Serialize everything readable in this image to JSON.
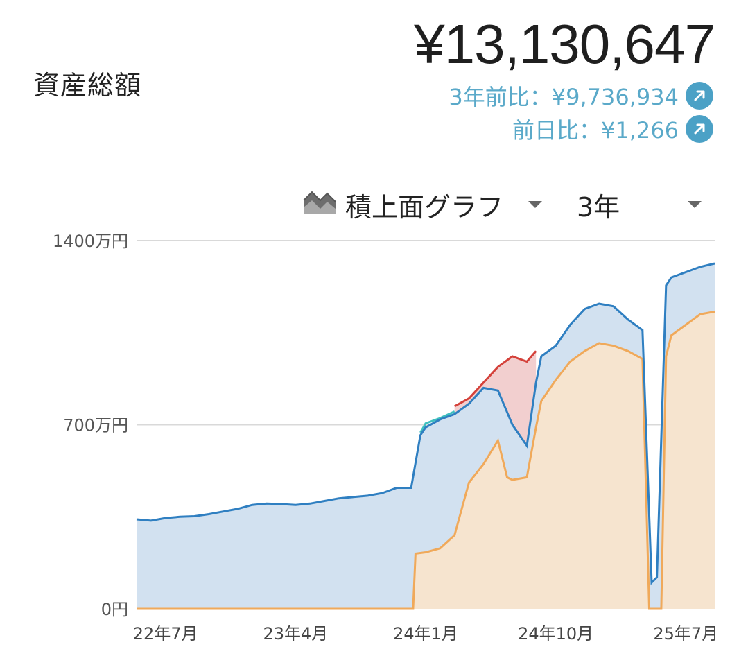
{
  "header": {
    "label": "資産総額",
    "total": "¥13,130,647",
    "comparisons": [
      {
        "text": "3年前比：¥9,736,934",
        "icon": "arrow-up-right-icon"
      },
      {
        "text": "前日比：¥1,266",
        "icon": "arrow-up-right-icon"
      }
    ]
  },
  "controls": {
    "graph_type": "積上面グラフ",
    "graph_type_icon": "stacked-area-icon",
    "period": "3年"
  },
  "colors": {
    "accent": "#4ba1c6",
    "blue_line": "#2f7fc1",
    "blue_fill": "#d2e1f0",
    "orange_line": "#f0a95a",
    "orange_fill": "#f6e4cf",
    "red_line": "#d4413a",
    "red_fill": "#f2cfcf",
    "teal_line": "#3fbfbf"
  },
  "chart_data": {
    "type": "area",
    "stacked": true,
    "ylim": [
      0,
      1400
    ],
    "y_unit": "万円",
    "y_ticks": [
      "1400万円",
      "700万円",
      "0円"
    ],
    "y_tick_values": [
      1400,
      700,
      0
    ],
    "x_ticks": [
      "22年7月",
      "23年4月",
      "24年1月",
      "24年10月",
      "25年7月"
    ],
    "x_tick_positions": [
      "2022-07",
      "2023-04",
      "2024-01",
      "2024-10",
      "2025-07"
    ],
    "x_range": [
      "2022-05",
      "2025-09"
    ],
    "grid": true,
    "series": [
      {
        "role": "total",
        "color": "blue",
        "points": [
          [
            "2022-05",
            340
          ],
          [
            "2022-06",
            335
          ],
          [
            "2022-07",
            345
          ],
          [
            "2022-08",
            350
          ],
          [
            "2022-09",
            352
          ],
          [
            "2022-10",
            360
          ],
          [
            "2022-11",
            370
          ],
          [
            "2022-12",
            380
          ],
          [
            "2023-01",
            395
          ],
          [
            "2023-02",
            400
          ],
          [
            "2023-03",
            398
          ],
          [
            "2023-04",
            395
          ],
          [
            "2023-05",
            400
          ],
          [
            "2023-06",
            410
          ],
          [
            "2023-07",
            420
          ],
          [
            "2023-08",
            425
          ],
          [
            "2023-09",
            430
          ],
          [
            "2023-10",
            440
          ],
          [
            "2023-11",
            460
          ],
          [
            "2023-12",
            460
          ],
          [
            "2023-12-20",
            660
          ],
          [
            "2024-01",
            690
          ],
          [
            "2024-02",
            720
          ],
          [
            "2024-03",
            740
          ],
          [
            "2024-04",
            780
          ],
          [
            "2024-05",
            840
          ],
          [
            "2024-06",
            830
          ],
          [
            "2024-07",
            700
          ],
          [
            "2024-08",
            620
          ],
          [
            "2024-08-20",
            860
          ],
          [
            "2024-09",
            960
          ],
          [
            "2024-10",
            1000
          ],
          [
            "2024-11",
            1080
          ],
          [
            "2024-12",
            1140
          ],
          [
            "2025-01",
            1160
          ],
          [
            "2025-02",
            1150
          ],
          [
            "2025-03",
            1100
          ],
          [
            "2025-04",
            1060
          ],
          [
            "2025-04-20",
            100
          ],
          [
            "2025-05",
            120
          ],
          [
            "2025-05-20",
            1230
          ],
          [
            "2025-06",
            1260
          ],
          [
            "2025-07",
            1280
          ],
          [
            "2025-08",
            1300
          ],
          [
            "2025-09",
            1313
          ]
        ]
      },
      {
        "role": "base",
        "color": "orange",
        "points": [
          [
            "2022-05",
            0
          ],
          [
            "2023-12",
            0
          ],
          [
            "2023-12-05",
            0
          ],
          [
            "2023-12-10",
            210
          ],
          [
            "2024-01",
            215
          ],
          [
            "2024-02",
            230
          ],
          [
            "2024-03",
            280
          ],
          [
            "2024-04",
            480
          ],
          [
            "2024-05",
            550
          ],
          [
            "2024-06",
            640
          ],
          [
            "2024-06-20",
            500
          ],
          [
            "2024-07",
            490
          ],
          [
            "2024-08",
            500
          ],
          [
            "2024-08-20",
            690
          ],
          [
            "2024-09",
            790
          ],
          [
            "2024-10",
            870
          ],
          [
            "2024-11",
            940
          ],
          [
            "2024-12",
            980
          ],
          [
            "2025-01",
            1010
          ],
          [
            "2025-02",
            1000
          ],
          [
            "2025-03",
            980
          ],
          [
            "2025-04",
            950
          ],
          [
            "2025-04-15",
            0
          ],
          [
            "2025-05-10",
            0
          ],
          [
            "2025-05-20",
            960
          ],
          [
            "2025-06",
            1040
          ],
          [
            "2025-07",
            1080
          ],
          [
            "2025-08",
            1120
          ],
          [
            "2025-09",
            1130
          ]
        ]
      },
      {
        "role": "overlay",
        "color": "red",
        "points": [
          [
            "2024-03",
            770
          ],
          [
            "2024-04",
            800
          ],
          [
            "2024-05",
            860
          ],
          [
            "2024-06",
            920
          ],
          [
            "2024-07",
            960
          ],
          [
            "2024-08",
            940
          ],
          [
            "2024-08-20",
            980
          ]
        ]
      },
      {
        "role": "overlay",
        "color": "teal",
        "points": [
          [
            "2023-12-20",
            670
          ],
          [
            "2024-01",
            705
          ],
          [
            "2024-02",
            725
          ],
          [
            "2024-03",
            750
          ]
        ]
      }
    ]
  }
}
